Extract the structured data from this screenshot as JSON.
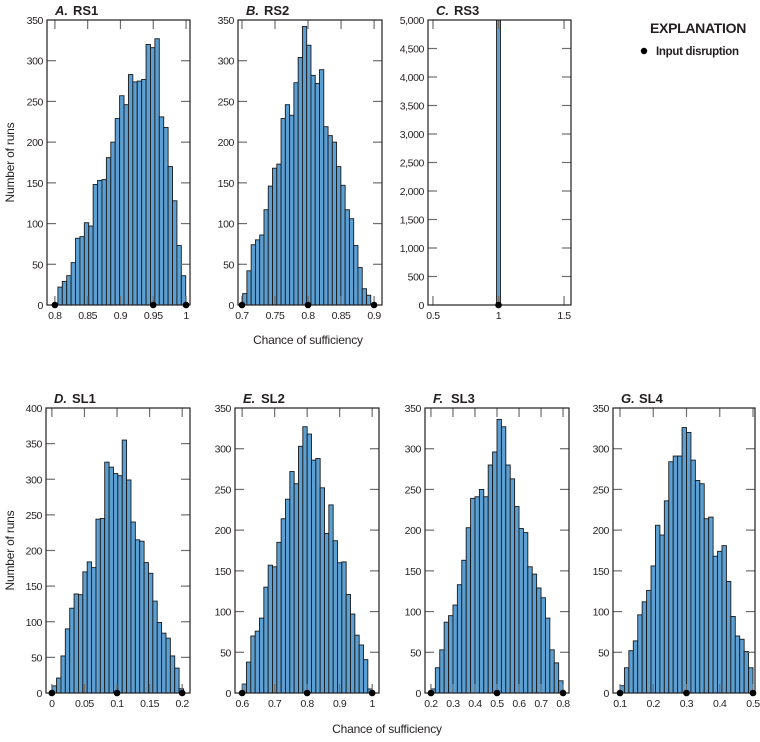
{
  "legend": {
    "title": "EXPLANATION",
    "item_label": "Input disruption",
    "item_marker": "filled-circle"
  },
  "colors": {
    "bar_fill": "#5b9fd3",
    "bar_stroke": "#1a1a1a",
    "frame": "#231f20",
    "tick": "#6d6e70",
    "marker": "#000000"
  },
  "axis_labels": {
    "y": "Number of runs",
    "x_top": "Chance of sufficiency",
    "x_bottom": "Chance of sufficiency"
  },
  "chart_data": [
    {
      "type": "bar",
      "letter": "A.",
      "title": "RS1",
      "xlim": [
        0.788,
        1.006
      ],
      "ylim": [
        0,
        350
      ],
      "xticks": [
        0.8,
        0.85,
        0.9,
        0.95,
        1.0
      ],
      "xtick_labels": [
        "0.8",
        "0.85",
        "0.9",
        "0.95",
        "1"
      ],
      "yticks": [
        0,
        50,
        100,
        150,
        200,
        250,
        300,
        350
      ],
      "ytick_labels": [
        "0",
        "50",
        "100",
        "150",
        "200",
        "250",
        "300",
        "350"
      ],
      "bin_range": [
        0.8046,
        0.9995
      ],
      "counts": [
        22,
        29,
        36,
        52,
        82,
        84,
        101,
        97,
        148,
        153,
        154,
        181,
        200,
        229,
        257,
        246,
        283,
        274,
        275,
        277,
        320,
        316,
        327,
        231,
        218,
        170,
        128,
        73,
        36
      ],
      "disruptions": [
        0.8,
        0.95,
        1.0
      ],
      "ylabel": true
    },
    {
      "type": "bar",
      "letter": "B.",
      "title": "RS2",
      "xlim": [
        0.694,
        0.912
      ],
      "ylim": [
        0,
        350
      ],
      "xticks": [
        0.7,
        0.75,
        0.8,
        0.85,
        0.9
      ],
      "xtick_labels": [
        "0.7",
        "0.75",
        "0.8",
        "0.85",
        "0.9"
      ],
      "yticks": [
        0,
        50,
        100,
        150,
        200,
        250,
        300,
        350
      ],
      "ytick_labels": [
        "0",
        "50",
        "100",
        "150",
        "200",
        "250",
        "300",
        "350"
      ],
      "bin_range": [
        0.701,
        0.895
      ],
      "counts": [
        14,
        42,
        74,
        80,
        86,
        117,
        146,
        168,
        173,
        229,
        246,
        233,
        273,
        304,
        342,
        319,
        282,
        272,
        289,
        219,
        208,
        200,
        170,
        147,
        117,
        106,
        73,
        46,
        20,
        12
      ],
      "disruptions": [
        0.7,
        0.8,
        0.9
      ],
      "ylabel": false
    },
    {
      "type": "bar",
      "letter": "C.",
      "title": "RS3",
      "xlim": [
        0.462,
        1.553
      ],
      "ylim": [
        0,
        5000
      ],
      "xticks": [
        0.5,
        1.0,
        1.5
      ],
      "xtick_labels": [
        "0.5",
        "1",
        "1.5"
      ],
      "yticks": [
        0,
        500,
        1000,
        1500,
        2000,
        2500,
        3000,
        3500,
        4000,
        4500,
        5000
      ],
      "ytick_labels": [
        "0",
        "500",
        "1,000",
        "1,500",
        "2,000",
        "2,500",
        "3,000",
        "3,500",
        "4,000",
        "4,500",
        "5,000"
      ],
      "bin_range": [
        0.985,
        1.015
      ],
      "counts": [
        5000
      ],
      "disruptions": [
        1.0
      ],
      "ylabel": false
    },
    {
      "type": "bar",
      "letter": "D.",
      "title": "SL1",
      "xlim": [
        -0.009,
        0.212
      ],
      "ylim": [
        0,
        400
      ],
      "xticks": [
        0,
        0.05,
        0.1,
        0.15,
        0.2
      ],
      "xtick_labels": [
        "0",
        "0.05",
        "0.1",
        "0.15",
        "0.2"
      ],
      "yticks": [
        0,
        50,
        100,
        150,
        200,
        250,
        300,
        350,
        400
      ],
      "ytick_labels": [
        "0",
        "50",
        "100",
        "150",
        "200",
        "250",
        "300",
        "350",
        "400"
      ],
      "bin_range": [
        0.0005,
        0.202
      ],
      "counts": [
        10,
        21,
        52,
        90,
        119,
        139,
        138,
        170,
        184,
        176,
        244,
        245,
        324,
        317,
        308,
        305,
        355,
        299,
        240,
        215,
        213,
        183,
        168,
        129,
        99,
        84,
        77,
        52,
        35,
        6
      ],
      "disruptions": [
        0,
        0.1,
        0.2
      ],
      "ylabel": true
    },
    {
      "type": "bar",
      "letter": "E.",
      "title": "SL2",
      "xlim": [
        0.578,
        1.021
      ],
      "ylim": [
        0,
        350
      ],
      "xticks": [
        0.6,
        0.7,
        0.8,
        0.9,
        1.0
      ],
      "xtick_labels": [
        "0.6",
        "0.7",
        "0.8",
        "0.9",
        "1"
      ],
      "yticks": [
        0,
        50,
        100,
        150,
        200,
        250,
        300,
        350
      ],
      "ytick_labels": [
        "0",
        "50",
        "100",
        "150",
        "200",
        "250",
        "300",
        "350"
      ],
      "bin_range": [
        0.6,
        1.0
      ],
      "counts": [
        11,
        38,
        70,
        76,
        92,
        130,
        157,
        155,
        185,
        214,
        238,
        272,
        257,
        303,
        327,
        318,
        286,
        288,
        252,
        196,
        231,
        187,
        160,
        161,
        121,
        97,
        71,
        59,
        41,
        5
      ],
      "disruptions": [
        0.6,
        0.8,
        1.0
      ],
      "ylabel": false
    },
    {
      "type": "bar",
      "letter": "F.",
      "title": "SL3",
      "xlim": [
        0.173,
        0.827
      ],
      "ylim": [
        0,
        350
      ],
      "xticks": [
        0.2,
        0.3,
        0.4,
        0.5,
        0.6,
        0.7,
        0.8
      ],
      "xtick_labels": [
        "0.2",
        "0.3",
        "0.4",
        "0.5",
        "0.6",
        "0.7",
        "0.8"
      ],
      "yticks": [
        0,
        50,
        100,
        150,
        200,
        250,
        300,
        350
      ],
      "ytick_labels": [
        "0",
        "50",
        "100",
        "150",
        "200",
        "250",
        "300",
        "350"
      ],
      "bin_range": [
        0.2,
        0.8
      ],
      "counts": [
        5,
        31,
        53,
        87,
        95,
        108,
        133,
        163,
        203,
        239,
        241,
        250,
        241,
        280,
        296,
        336,
        327,
        280,
        263,
        229,
        202,
        197,
        155,
        146,
        129,
        117,
        92,
        53,
        37,
        15
      ],
      "disruptions": [
        0.2,
        0.5,
        0.8
      ],
      "ylabel": false
    },
    {
      "type": "bar",
      "letter": "G.",
      "title": "SL4",
      "xlim": [
        0.079,
        0.506
      ],
      "ylim": [
        0,
        350
      ],
      "xticks": [
        0.1,
        0.2,
        0.3,
        0.4,
        0.5
      ],
      "xtick_labels": [
        "0.1",
        "0.2",
        "0.3",
        "0.4",
        "0.5"
      ],
      "yticks": [
        0,
        50,
        100,
        150,
        200,
        250,
        300,
        350
      ],
      "ytick_labels": [
        "0",
        "50",
        "100",
        "150",
        "200",
        "250",
        "300",
        "350"
      ],
      "bin_range": [
        0.1,
        0.5
      ],
      "counts": [
        9,
        31,
        52,
        64,
        96,
        112,
        126,
        156,
        206,
        194,
        236,
        284,
        291,
        291,
        326,
        320,
        286,
        261,
        257,
        214,
        216,
        168,
        174,
        181,
        137,
        94,
        70,
        66,
        51,
        31
      ],
      "disruptions": [
        0.1,
        0.3,
        0.5
      ],
      "ylabel": false
    }
  ]
}
